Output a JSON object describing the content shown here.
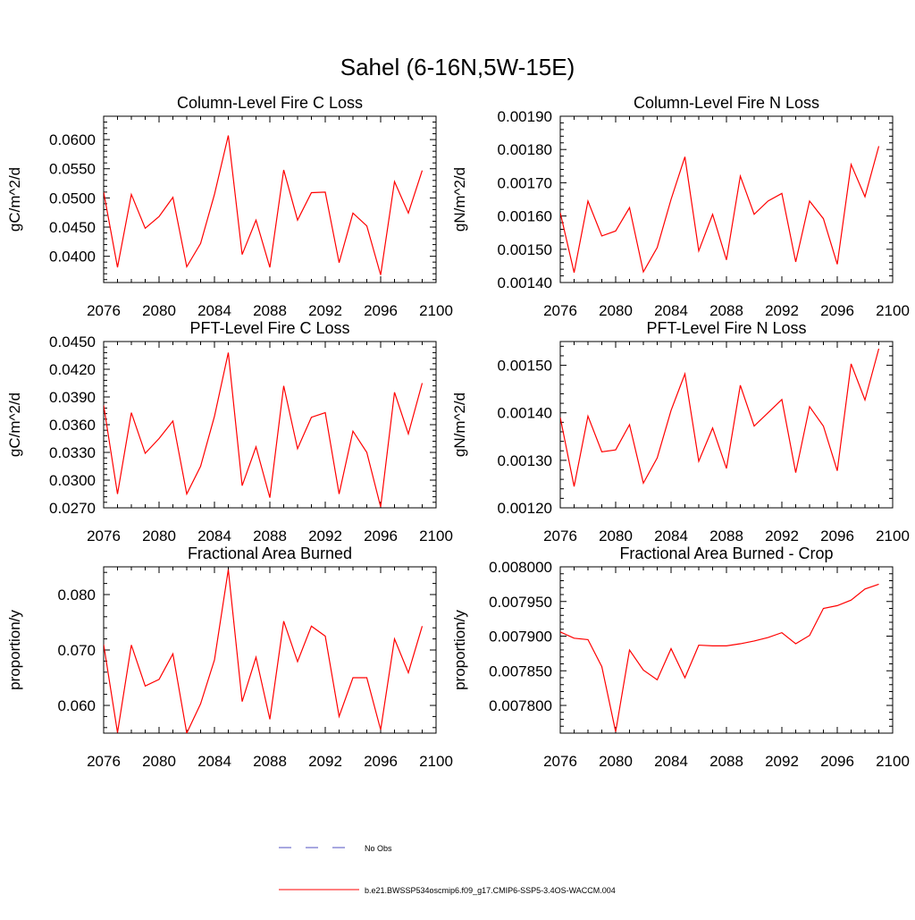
{
  "figure_title": "Sahel (6-16N,5W-15E)",
  "legend": {
    "entries": [
      {
        "label": "No Obs",
        "style": "dashed",
        "color": "#5050c0"
      },
      {
        "label": "b.e21.BWSSP534oscmip6.f09_g17.CMIP6-SSP5-3.4OS-WACCM.004",
        "style": "solid",
        "color": "#ff0000"
      }
    ]
  },
  "chart_data": [
    {
      "type": "line",
      "title": "Column-Level Fire C Loss",
      "xlabel": "",
      "ylabel": "gC/m^2/d",
      "xlim": [
        2076,
        2100
      ],
      "ylim": [
        0.0355,
        0.064
      ],
      "xticks": [
        2076,
        2080,
        2084,
        2088,
        2092,
        2096,
        2100
      ],
      "yticks": [
        0.04,
        0.045,
        0.05,
        0.055,
        0.06
      ],
      "ytick_labels": [
        "0.0400",
        "0.0450",
        "0.0500",
        "0.0550",
        "0.0600"
      ],
      "x": [
        2076,
        2077,
        2078,
        2079,
        2080,
        2081,
        2082,
        2083,
        2084,
        2085,
        2086,
        2087,
        2088,
        2089,
        2090,
        2091,
        2092,
        2093,
        2094,
        2095,
        2096,
        2097,
        2098,
        2099
      ],
      "series": [
        {
          "name": "b.e21.BWSSP534oscmip6.f09_g17.CMIP6-SSP5-3.4OS-WACCM.004",
          "color": "#ff0000",
          "values": [
            0.051,
            0.0381,
            0.0506,
            0.0448,
            0.0468,
            0.0501,
            0.0382,
            0.0422,
            0.0506,
            0.0607,
            0.0403,
            0.0462,
            0.0381,
            0.0548,
            0.0462,
            0.0509,
            0.051,
            0.0389,
            0.0474,
            0.0452,
            0.0368,
            0.0528,
            0.0474,
            0.0547
          ]
        }
      ]
    },
    {
      "type": "line",
      "title": "Column-Level Fire N Loss",
      "xlabel": "",
      "ylabel": "gN/m^2/d",
      "xlim": [
        2076,
        2100
      ],
      "ylim": [
        0.0014,
        0.0019
      ],
      "xticks": [
        2076,
        2080,
        2084,
        2088,
        2092,
        2096,
        2100
      ],
      "yticks": [
        0.0014,
        0.0015,
        0.0016,
        0.0017,
        0.0018,
        0.0019
      ],
      "ytick_labels": [
        "0.00140",
        "0.00150",
        "0.00160",
        "0.00170",
        "0.00180",
        "0.00190"
      ],
      "x": [
        2076,
        2077,
        2078,
        2079,
        2080,
        2081,
        2082,
        2083,
        2084,
        2085,
        2086,
        2087,
        2088,
        2089,
        2090,
        2091,
        2092,
        2093,
        2094,
        2095,
        2096,
        2097,
        2098,
        2099
      ],
      "series": [
        {
          "name": "b.e21.BWSSP534oscmip6.f09_g17.CMIP6-SSP5-3.4OS-WACCM.004",
          "color": "#ff0000",
          "values": [
            0.00161,
            0.00143,
            0.001645,
            0.00154,
            0.001555,
            0.001625,
            0.001432,
            0.001505,
            0.00165,
            0.001778,
            0.001495,
            0.001605,
            0.001468,
            0.00172,
            0.001605,
            0.001645,
            0.001668,
            0.001462,
            0.001645,
            0.001592,
            0.001455,
            0.001755,
            0.001658,
            0.00181
          ]
        }
      ]
    },
    {
      "type": "line",
      "title": "PFT-Level Fire C Loss",
      "xlabel": "",
      "ylabel": "gC/m^2/d",
      "xlim": [
        2076,
        2100
      ],
      "ylim": [
        0.027,
        0.045
      ],
      "xticks": [
        2076,
        2080,
        2084,
        2088,
        2092,
        2096,
        2100
      ],
      "yticks": [
        0.027,
        0.03,
        0.033,
        0.036,
        0.039,
        0.042,
        0.045
      ],
      "ytick_labels": [
        "0.0270",
        "0.0300",
        "0.0330",
        "0.0360",
        "0.0390",
        "0.0420",
        "0.0450"
      ],
      "x": [
        2076,
        2077,
        2078,
        2079,
        2080,
        2081,
        2082,
        2083,
        2084,
        2085,
        2086,
        2087,
        2088,
        2089,
        2090,
        2091,
        2092,
        2093,
        2094,
        2095,
        2096,
        2097,
        2098,
        2099
      ],
      "series": [
        {
          "name": "b.e21.BWSSP534oscmip6.f09_g17.CMIP6-SSP5-3.4OS-WACCM.004",
          "color": "#ff0000",
          "values": [
            0.0381,
            0.0285,
            0.0373,
            0.0329,
            0.0345,
            0.0364,
            0.0285,
            0.0315,
            0.0369,
            0.0438,
            0.0294,
            0.0336,
            0.0281,
            0.0402,
            0.0334,
            0.0368,
            0.0373,
            0.0285,
            0.0353,
            0.033,
            0.0271,
            0.0395,
            0.035,
            0.0405
          ]
        }
      ]
    },
    {
      "type": "line",
      "title": "PFT-Level Fire N Loss",
      "xlabel": "",
      "ylabel": "gN/m^2/d",
      "xlim": [
        2076,
        2100
      ],
      "ylim": [
        0.0012,
        0.00155
      ],
      "xticks": [
        2076,
        2080,
        2084,
        2088,
        2092,
        2096,
        2100
      ],
      "yticks": [
        0.0012,
        0.0013,
        0.0014,
        0.0015
      ],
      "ytick_labels": [
        "0.00120",
        "0.00130",
        "0.00140",
        "0.00150"
      ],
      "x": [
        2076,
        2077,
        2078,
        2079,
        2080,
        2081,
        2082,
        2083,
        2084,
        2085,
        2086,
        2087,
        2088,
        2089,
        2090,
        2091,
        2092,
        2093,
        2094,
        2095,
        2096,
        2097,
        2098,
        2099
      ],
      "series": [
        {
          "name": "b.e21.BWSSP534oscmip6.f09_g17.CMIP6-SSP5-3.4OS-WACCM.004",
          "color": "#ff0000",
          "values": [
            0.00139,
            0.001245,
            0.001393,
            0.001318,
            0.001322,
            0.001375,
            0.001252,
            0.001305,
            0.001405,
            0.001482,
            0.001298,
            0.001368,
            0.001283,
            0.001458,
            0.001372,
            0.0014,
            0.001428,
            0.001274,
            0.001413,
            0.001372,
            0.001278,
            0.001503,
            0.001427,
            0.001535
          ]
        }
      ]
    },
    {
      "type": "line",
      "title": "Fractional Area Burned",
      "xlabel": "",
      "ylabel": "proportion/y",
      "xlim": [
        2076,
        2100
      ],
      "ylim": [
        0.055,
        0.085
      ],
      "xticks": [
        2076,
        2080,
        2084,
        2088,
        2092,
        2096,
        2100
      ],
      "yticks": [
        0.06,
        0.07,
        0.08
      ],
      "ytick_labels": [
        "0.060",
        "0.070",
        "0.080"
      ],
      "x": [
        2076,
        2077,
        2078,
        2079,
        2080,
        2081,
        2082,
        2083,
        2084,
        2085,
        2086,
        2087,
        2088,
        2089,
        2090,
        2091,
        2092,
        2093,
        2094,
        2095,
        2096,
        2097,
        2098,
        2099
      ],
      "series": [
        {
          "name": "b.e21.BWSSP534oscmip6.f09_g17.CMIP6-SSP5-3.4OS-WACCM.004",
          "color": "#ff0000",
          "values": [
            0.071,
            0.0551,
            0.0709,
            0.0635,
            0.0647,
            0.0693,
            0.055,
            0.0603,
            0.0682,
            0.0845,
            0.0607,
            0.0687,
            0.0575,
            0.0752,
            0.0679,
            0.0743,
            0.0725,
            0.058,
            0.065,
            0.065,
            0.0556,
            0.072,
            0.0659,
            0.0743
          ]
        }
      ]
    },
    {
      "type": "line",
      "title": "Fractional Area Burned - Crop",
      "xlabel": "",
      "ylabel": "proportion/y",
      "xlim": [
        2076,
        2100
      ],
      "ylim": [
        0.00776,
        0.008
      ],
      "xticks": [
        2076,
        2080,
        2084,
        2088,
        2092,
        2096,
        2100
      ],
      "yticks": [
        0.0078,
        0.00785,
        0.0079,
        0.00795,
        0.008
      ],
      "ytick_labels": [
        "0.007800",
        "0.007850",
        "0.007900",
        "0.007950",
        "0.008000"
      ],
      "x": [
        2076,
        2077,
        2078,
        2079,
        2080,
        2081,
        2082,
        2083,
        2084,
        2085,
        2086,
        2087,
        2088,
        2089,
        2090,
        2091,
        2092,
        2093,
        2094,
        2095,
        2096,
        2097,
        2098,
        2099
      ],
      "series": [
        {
          "name": "b.e21.BWSSP534oscmip6.f09_g17.CMIP6-SSP5-3.4OS-WACCM.004",
          "color": "#ff0000",
          "values": [
            0.007906,
            0.007897,
            0.007895,
            0.007856,
            0.007762,
            0.00788,
            0.007851,
            0.007837,
            0.007882,
            0.00784,
            0.007887,
            0.007886,
            0.007886,
            0.007889,
            0.007893,
            0.007898,
            0.007905,
            0.007889,
            0.007901,
            0.00794,
            0.007944,
            0.007952,
            0.007968,
            0.007975
          ]
        }
      ]
    }
  ]
}
